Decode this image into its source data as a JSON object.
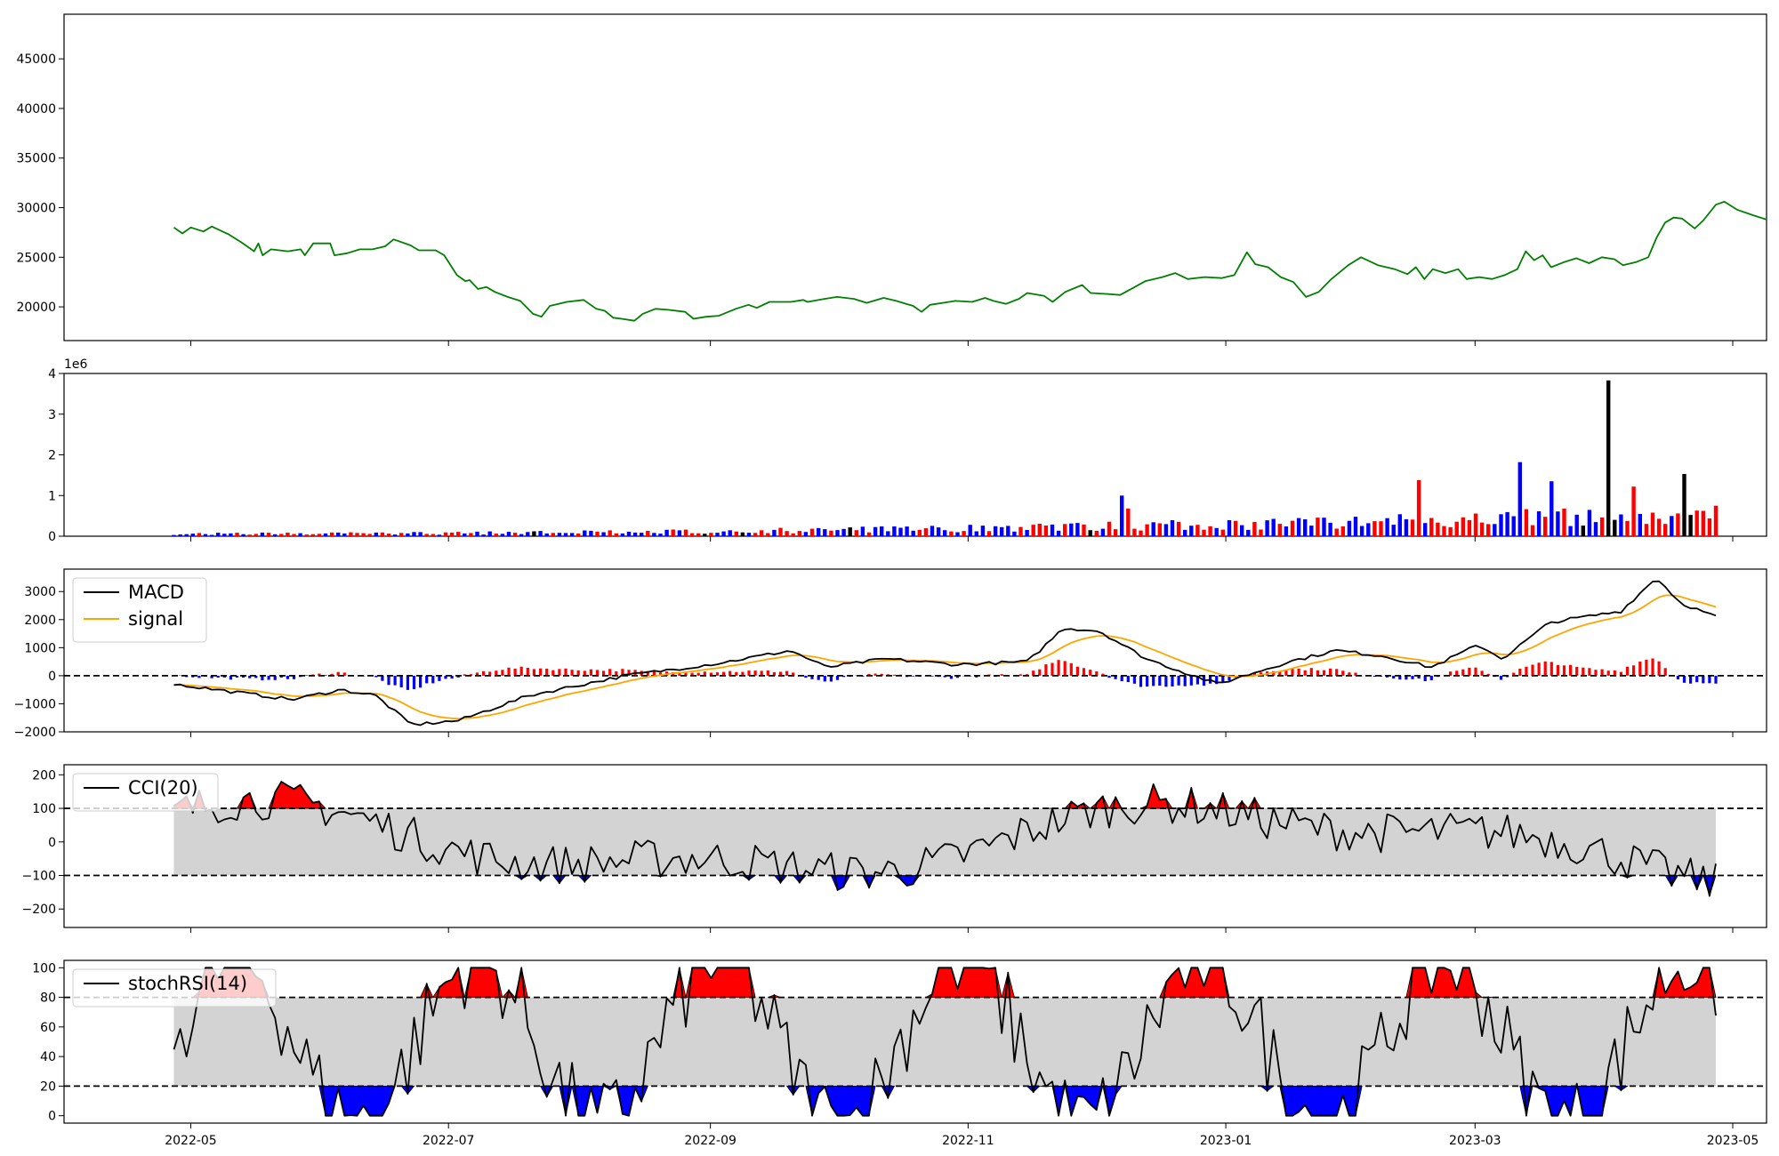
{
  "chart_data": [
    {
      "type": "line",
      "panel": "price",
      "xlim": [
        "2022-04-01",
        "2023-05-09"
      ],
      "ylim": [
        16600,
        49500
      ],
      "yticks": [
        20000,
        25000,
        30000,
        35000,
        40000,
        45000
      ],
      "grid": false,
      "series": [
        {
          "color": "#008000",
          "points": [
            [
              "2022-04-27",
              28000
            ],
            [
              "2022-04-29",
              27400
            ],
            [
              "2022-05-01",
              28000
            ],
            [
              "2022-05-04",
              27600
            ],
            [
              "2022-05-06",
              28100
            ],
            [
              "2022-05-10",
              27300
            ],
            [
              "2022-05-13",
              26500
            ],
            [
              "2022-05-16",
              25600
            ],
            [
              "2022-05-17",
              26400
            ],
            [
              "2022-05-18",
              25200
            ],
            [
              "2022-05-20",
              25800
            ],
            [
              "2022-05-24",
              25600
            ],
            [
              "2022-05-27",
              25800
            ],
            [
              "2022-05-28",
              25200
            ],
            [
              "2022-05-30",
              26400
            ],
            [
              "2022-06-03",
              26400
            ],
            [
              "2022-06-04",
              25200
            ],
            [
              "2022-06-07",
              25400
            ],
            [
              "2022-06-10",
              25800
            ],
            [
              "2022-06-13",
              25800
            ],
            [
              "2022-06-16",
              26100
            ],
            [
              "2022-06-18",
              26800
            ],
            [
              "2022-06-22",
              26200
            ],
            [
              "2022-06-24",
              25700
            ],
            [
              "2022-06-28",
              25700
            ],
            [
              "2022-06-30",
              25200
            ],
            [
              "2022-07-03",
              23200
            ],
            [
              "2022-07-05",
              22600
            ],
            [
              "2022-07-06",
              22700
            ],
            [
              "2022-07-08",
              21800
            ],
            [
              "2022-07-10",
              22000
            ],
            [
              "2022-07-12",
              21500
            ],
            [
              "2022-07-15",
              21000
            ],
            [
              "2022-07-18",
              20600
            ],
            [
              "2022-07-21",
              19300
            ],
            [
              "2022-07-23",
              19000
            ],
            [
              "2022-07-25",
              20100
            ],
            [
              "2022-07-29",
              20500
            ],
            [
              "2022-08-02",
              20700
            ],
            [
              "2022-08-05",
              19800
            ],
            [
              "2022-08-07",
              19600
            ],
            [
              "2022-08-09",
              18900
            ],
            [
              "2022-08-11",
              18800
            ],
            [
              "2022-08-14",
              18600
            ],
            [
              "2022-08-16",
              19300
            ],
            [
              "2022-08-19",
              19800
            ],
            [
              "2022-08-22",
              19700
            ],
            [
              "2022-08-26",
              19500
            ],
            [
              "2022-08-28",
              18800
            ],
            [
              "2022-08-31",
              19000
            ],
            [
              "2022-09-03",
              19100
            ],
            [
              "2022-09-07",
              19800
            ],
            [
              "2022-09-10",
              20200
            ],
            [
              "2022-09-12",
              19900
            ],
            [
              "2022-09-15",
              20500
            ],
            [
              "2022-09-20",
              20500
            ],
            [
              "2022-09-23",
              20700
            ],
            [
              "2022-09-24",
              20500
            ],
            [
              "2022-09-28",
              20800
            ],
            [
              "2022-10-01",
              21000
            ],
            [
              "2022-10-05",
              20800
            ],
            [
              "2022-10-08",
              20400
            ],
            [
              "2022-10-12",
              20900
            ],
            [
              "2022-10-15",
              20600
            ],
            [
              "2022-10-19",
              20100
            ],
            [
              "2022-10-21",
              19500
            ],
            [
              "2022-10-23",
              20200
            ],
            [
              "2022-10-26",
              20400
            ],
            [
              "2022-10-29",
              20600
            ],
            [
              "2022-11-02",
              20500
            ],
            [
              "2022-11-05",
              20900
            ],
            [
              "2022-11-07",
              20600
            ],
            [
              "2022-11-10",
              20300
            ],
            [
              "2022-11-13",
              20800
            ],
            [
              "2022-11-15",
              21400
            ],
            [
              "2022-11-19",
              21100
            ],
            [
              "2022-11-21",
              20500
            ],
            [
              "2022-11-24",
              21500
            ],
            [
              "2022-11-28",
              22200
            ],
            [
              "2022-11-30",
              21400
            ],
            [
              "2022-12-04",
              21300
            ],
            [
              "2022-12-07",
              21200
            ],
            [
              "2022-12-10",
              21900
            ],
            [
              "2022-12-13",
              22600
            ],
            [
              "2022-12-17",
              23000
            ],
            [
              "2022-12-20",
              23400
            ],
            [
              "2022-12-23",
              22800
            ],
            [
              "2022-12-27",
              23000
            ],
            [
              "2022-12-31",
              22900
            ],
            [
              "2023-01-03",
              23200
            ],
            [
              "2023-01-06",
              25500
            ],
            [
              "2023-01-08",
              24300
            ],
            [
              "2023-01-11",
              24000
            ],
            [
              "2023-01-14",
              23000
            ],
            [
              "2023-01-17",
              22500
            ],
            [
              "2023-01-20",
              21000
            ],
            [
              "2023-01-23",
              21500
            ],
            [
              "2023-01-26",
              22800
            ],
            [
              "2023-01-30",
              24200
            ],
            [
              "2023-02-02",
              25000
            ],
            [
              "2023-02-06",
              24200
            ],
            [
              "2023-02-10",
              23800
            ],
            [
              "2023-02-13",
              23300
            ],
            [
              "2023-02-15",
              24000
            ],
            [
              "2023-02-17",
              22800
            ],
            [
              "2023-02-19",
              23800
            ],
            [
              "2023-02-22",
              23400
            ],
            [
              "2023-02-25",
              23800
            ],
            [
              "2023-02-27",
              22800
            ],
            [
              "2023-03-02",
              23000
            ],
            [
              "2023-03-05",
              22800
            ],
            [
              "2023-03-08",
              23200
            ],
            [
              "2023-03-11",
              23800
            ],
            [
              "2023-03-13",
              25600
            ],
            [
              "2023-03-15",
              24700
            ],
            [
              "2023-03-17",
              25200
            ],
            [
              "2023-03-19",
              24000
            ],
            [
              "2023-03-22",
              24500
            ],
            [
              "2023-03-25",
              24900
            ],
            [
              "2023-03-28",
              24400
            ],
            [
              "2023-03-31",
              25000
            ],
            [
              "2023-04-03",
              24800
            ],
            [
              "2023-04-05",
              24200
            ],
            [
              "2023-04-08",
              24500
            ],
            [
              "2023-04-11",
              25000
            ],
            [
              "2023-04-13",
              27000
            ],
            [
              "2023-04-15",
              28500
            ],
            [
              "2023-04-17",
              29000
            ],
            [
              "2023-04-19",
              28900
            ],
            [
              "2023-04-22",
              27900
            ],
            [
              "2023-04-24",
              28700
            ],
            [
              "2023-04-27",
              30300
            ],
            [
              "2023-04-29",
              30600
            ],
            [
              "2023-05-02",
              29800
            ],
            [
              "2023-05-06",
              29200
            ],
            [
              "2023-05-09",
              28800
            ]
          ]
        }
      ]
    },
    {
      "type": "bar",
      "panel": "volume",
      "ylim": [
        0,
        4000000
      ],
      "yticks": [
        0,
        1000000,
        2000000,
        3000000,
        4000000
      ],
      "ytick_labels": [
        "0",
        "1",
        "2",
        "3",
        "4"
      ],
      "y_multiplier": "1e6",
      "grid": false
    },
    {
      "type": "line",
      "panel": "macd",
      "ylim": [
        -2000,
        3800
      ],
      "yticks": [
        -2000,
        -1000,
        0,
        1000,
        2000,
        3000
      ],
      "ytick_labels": [
        "−2000",
        "−1000",
        "0",
        "1000",
        "2000",
        "3000"
      ],
      "hlines": [
        0
      ],
      "legend_position": "top-left",
      "series": [
        {
          "name": "MACD",
          "color": "#000000"
        },
        {
          "name": "signal",
          "color": "#ffa500"
        }
      ],
      "grid": false
    },
    {
      "type": "line",
      "panel": "cci",
      "ylim": [
        -255,
        230
      ],
      "yticks": [
        -200,
        -100,
        0,
        100,
        200
      ],
      "ytick_labels": [
        "−200",
        "−100",
        "0",
        "100",
        "200"
      ],
      "hlines": [
        -100,
        100
      ],
      "band": [
        -100,
        100
      ],
      "legend_position": "top-left",
      "series": [
        {
          "name": "CCI(20)",
          "color": "#000000"
        }
      ],
      "grid": false
    },
    {
      "type": "line",
      "panel": "stochrsi",
      "ylim": [
        -5,
        105
      ],
      "yticks": [
        0,
        20,
        40,
        60,
        80,
        100
      ],
      "hlines": [
        20,
        80
      ],
      "band": [
        20,
        80
      ],
      "legend_position": "top-left",
      "series": [
        {
          "name": "stochRSI(14)",
          "color": "#000000"
        }
      ],
      "grid": false
    }
  ],
  "xaxis": {
    "ticks": [
      "2022-05-01",
      "2022-07-01",
      "2022-09-01",
      "2022-11-01",
      "2023-01-01",
      "2023-03-01",
      "2023-05-01"
    ],
    "tick_labels": [
      "2022-05",
      "2022-07",
      "2022-09",
      "2022-11",
      "2023-01",
      "2023-03",
      "2023-05"
    ]
  },
  "colors": {
    "up": "#ff0000",
    "down": "#0000ff",
    "neutral": "#000000",
    "band": "#d3d3d3",
    "price": "#008000",
    "signal": "#ffa500"
  }
}
